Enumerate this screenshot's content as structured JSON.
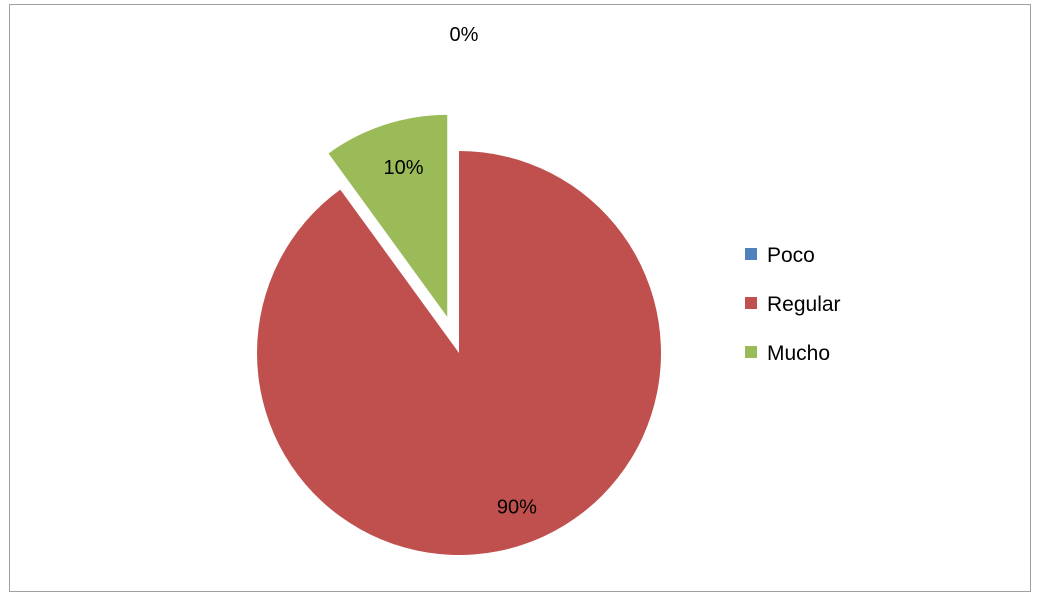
{
  "chart_data": {
    "type": "pie",
    "title": "",
    "slices": [
      {
        "name": "Poco",
        "value": 0,
        "label": "0%",
        "color": "#4F81BD",
        "exploded": false
      },
      {
        "name": "Regular",
        "value": 90,
        "label": "90%",
        "color": "#C0504D",
        "exploded": false
      },
      {
        "name": "Mucho",
        "value": 10,
        "label": "10%",
        "color": "#9BBB59",
        "exploded": true
      }
    ],
    "legend": {
      "position": "right",
      "entries": [
        "Poco",
        "Regular",
        "Mucho"
      ]
    }
  }
}
